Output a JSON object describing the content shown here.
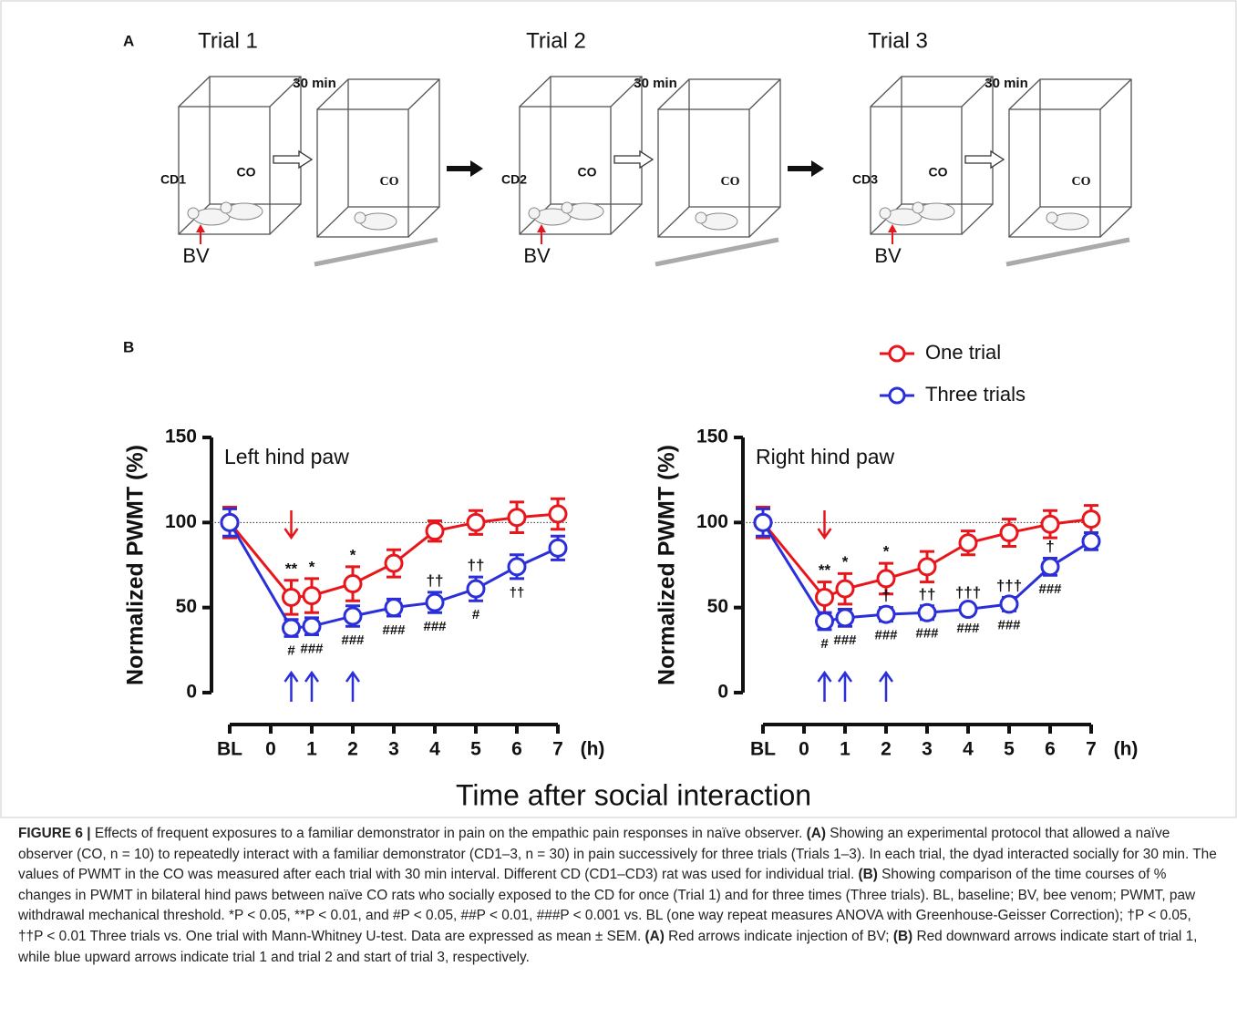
{
  "panel_a": {
    "label": "A",
    "trials": [
      {
        "title": "Trial 1",
        "interval": "30 min",
        "demonstrator": "CD1",
        "observer_label": "CO",
        "observer_label_after": "CO",
        "injection": "BV"
      },
      {
        "title": "Trial 2",
        "interval": "30 min",
        "demonstrator": "CD2",
        "observer_label": "CO",
        "observer_label_after": "CO",
        "injection": "BV"
      },
      {
        "title": "Trial 3",
        "interval": "30 min",
        "demonstrator": "CD3",
        "observer_label": "CO",
        "observer_label_after": "CO",
        "injection": "BV"
      }
    ]
  },
  "panel_b_label": "B",
  "xlabel": "Time after social interaction",
  "chart_data": [
    {
      "type": "line",
      "title": "Left hind paw",
      "ylabel": "Normalized PWMT (%)",
      "xlabel": "(h)",
      "x": [
        -1,
        0.5,
        1,
        2,
        3,
        4,
        5,
        6,
        7
      ],
      "xlim": [
        -1,
        7
      ],
      "xticks": [
        {
          "value": -1,
          "label": "BL"
        },
        0,
        1,
        2,
        3,
        4,
        5,
        6,
        7
      ],
      "ylim": [
        0,
        150
      ],
      "yticks": [
        0,
        50,
        100,
        150
      ],
      "reference_line": 100,
      "down_arrows": [
        0.5
      ],
      "up_arrows": [
        0.5,
        1,
        2
      ],
      "series": [
        {
          "name": "One trial",
          "color": "#e8161b",
          "values": [
            100,
            56,
            57,
            64,
            76,
            95,
            100,
            103,
            105
          ],
          "errors": [
            9,
            10,
            10,
            10,
            8,
            6,
            7,
            9,
            9
          ],
          "labels_above": [
            null,
            "**",
            "*",
            "*",
            null,
            null,
            null,
            null,
            null
          ]
        },
        {
          "name": "Three trials",
          "color": "#2a2fd9",
          "values": [
            100,
            38,
            39,
            45,
            50,
            53,
            61,
            74,
            85
          ],
          "errors": [
            8,
            5,
            5,
            6,
            5,
            6,
            7,
            7,
            7
          ],
          "labels_above": [
            null,
            null,
            null,
            null,
            null,
            "††",
            "††",
            null,
            null
          ],
          "labels_below": [
            null,
            "#",
            "###",
            "###",
            "###",
            "###",
            "#",
            "††",
            null
          ]
        }
      ]
    },
    {
      "type": "line",
      "title": "Right hind paw",
      "ylabel": "Normalized PWMT (%)",
      "xlabel": "(h)",
      "x": [
        -1,
        0.5,
        1,
        2,
        3,
        4,
        5,
        6,
        7
      ],
      "xlim": [
        -1,
        7
      ],
      "xticks": [
        {
          "value": -1,
          "label": "BL"
        },
        0,
        1,
        2,
        3,
        4,
        5,
        6,
        7
      ],
      "ylim": [
        0,
        150
      ],
      "yticks": [
        0,
        50,
        100,
        150
      ],
      "reference_line": 100,
      "down_arrows": [
        0.5
      ],
      "up_arrows": [
        0.5,
        1,
        2
      ],
      "series": [
        {
          "color": "#e8161b",
          "values": [
            100,
            56,
            61,
            67,
            74,
            88,
            94,
            99,
            102
          ],
          "errors": [
            9,
            9,
            9,
            9,
            9,
            7,
            8,
            8,
            8
          ],
          "labels_above": [
            null,
            "**",
            "*",
            "*",
            null,
            null,
            null,
            null,
            null
          ]
        },
        {
          "color": "#2a2fd9",
          "values": [
            100,
            42,
            44,
            46,
            47,
            49,
            52,
            74,
            89
          ],
          "errors": [
            8,
            5,
            5,
            4,
            4,
            3,
            4,
            5,
            5
          ],
          "labels_above": [
            null,
            null,
            null,
            "†",
            "††",
            "†††",
            "†††",
            "†",
            null
          ],
          "labels_below": [
            null,
            "#",
            "###",
            "###",
            "###",
            "###",
            "###",
            "###",
            null
          ]
        }
      ]
    }
  ],
  "caption": [
    {
      "text": "FIGURE 6 |",
      "bold": true
    },
    {
      "text": " Effects of frequent exposures to a familiar demonstrator in pain on the empathic pain responses in naïve observer. ",
      "bold": false
    },
    {
      "text": "(A)",
      "bold": true
    },
    {
      "text": " Showing an experimental protocol that allowed a naïve observer (CO, n = 10) to repeatedly interact with a familiar demonstrator (CD1–3, n = 30) in pain successively for three trials (Trials 1–3). In each trial, the dyad interacted socially for 30 min. The values of PWMT in the CO was measured after each trial with 30 min interval. Different CD (CD1–CD3) rat was used for individual trial. ",
      "bold": false
    },
    {
      "text": "(B)",
      "bold": true
    },
    {
      "text": " Showing comparison of the time courses of % changes in PWMT in bilateral hind paws between naïve CO rats who socially exposed to the CD for once (Trial 1) and for three times (Three trials). BL, baseline; BV, bee venom; PWMT, paw withdrawal mechanical threshold. *P < 0.05, **P < 0.01, and #P < 0.05, ##P < 0.01, ###P < 0.001 vs. BL (one way repeat measures ANOVA with Greenhouse-Geisser Correction); †P < 0.05, ††P < 0.01 Three trials vs. One trial with Mann-Whitney U-test. Data are expressed as mean ± SEM. ",
      "bold": false
    },
    {
      "text": "(A)",
      "bold": true
    },
    {
      "text": " Red arrows indicate injection of BV; ",
      "bold": false
    },
    {
      "text": "(B)",
      "bold": true
    },
    {
      "text": " Red downward arrows indicate start of trial 1, while blue upward arrows indicate trial 1 and trial 2 and start of trial 3, respectively.",
      "bold": false
    }
  ]
}
